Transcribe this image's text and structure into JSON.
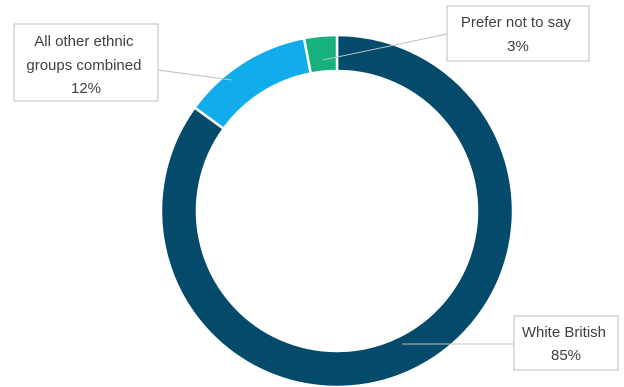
{
  "chart_data": {
    "type": "pie",
    "variant": "donut",
    "slices": [
      {
        "label": "White British",
        "value": 85,
        "value_label": "85%",
        "color": "#034a6b"
      },
      {
        "label": "All other ethnic groups combined",
        "value": 12,
        "value_label": "12%",
        "color": "#10acec"
      },
      {
        "label": "Prefer not to say",
        "value": 3,
        "value_label": "3%",
        "color": "#17b17e"
      }
    ],
    "callouts": [
      {
        "lines": [
          "All other ethnic",
          "groups combined",
          "12%"
        ]
      },
      {
        "lines": [
          "Prefer not to say",
          "3%"
        ]
      },
      {
        "lines": [
          "White British",
          "85%"
        ]
      }
    ],
    "legend": "none"
  }
}
